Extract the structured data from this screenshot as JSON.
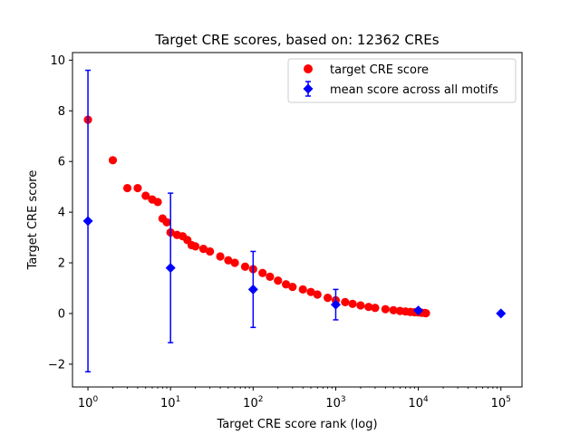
{
  "chart_data": {
    "type": "scatter",
    "title": "Target CRE scores, based on: 12362 CREs",
    "xlabel": "Target CRE score rank (log)",
    "ylabel": "Target CRE score",
    "xscale": "log",
    "xlim": [
      0.65,
      180000
    ],
    "ylim": [
      -2.9,
      10.3
    ],
    "x_ticks": [
      1,
      10,
      100,
      1000,
      10000,
      100000
    ],
    "x_tick_labels": [
      {
        "base": "10",
        "exp": "0"
      },
      {
        "base": "10",
        "exp": "1"
      },
      {
        "base": "10",
        "exp": "2"
      },
      {
        "base": "10",
        "exp": "3"
      },
      {
        "base": "10",
        "exp": "4"
      },
      {
        "base": "10",
        "exp": "5"
      }
    ],
    "y_ticks": [
      -2,
      0,
      2,
      4,
      6,
      8,
      10
    ],
    "y_tick_labels": [
      "−2",
      "0",
      "2",
      "4",
      "6",
      "8",
      "10"
    ],
    "grid": false,
    "legend_position": "top-right",
    "series": [
      {
        "name": "target CRE score",
        "kind": "points",
        "color": "#ff0000",
        "marker": "circle",
        "x": [
          1,
          2,
          3,
          4,
          5,
          6,
          7,
          8,
          9,
          10,
          12,
          14,
          16,
          18,
          20,
          25,
          30,
          40,
          50,
          60,
          80,
          100,
          130,
          160,
          200,
          250,
          300,
          400,
          500,
          600,
          800,
          1000,
          1300,
          1600,
          2000,
          2500,
          3000,
          4000,
          5000,
          6000,
          7000,
          8000,
          9000,
          10000,
          11000,
          12000,
          12362
        ],
        "y": [
          7.65,
          6.05,
          4.95,
          4.95,
          4.65,
          4.5,
          4.4,
          3.75,
          3.6,
          3.2,
          3.1,
          3.05,
          2.9,
          2.7,
          2.65,
          2.55,
          2.45,
          2.25,
          2.1,
          2.0,
          1.85,
          1.75,
          1.6,
          1.45,
          1.3,
          1.15,
          1.05,
          0.95,
          0.85,
          0.75,
          0.62,
          0.52,
          0.45,
          0.38,
          0.32,
          0.26,
          0.22,
          0.17,
          0.13,
          0.1,
          0.08,
          0.06,
          0.05,
          0.04,
          0.03,
          0.02,
          0.01
        ]
      },
      {
        "name": "mean score across all motifs",
        "kind": "errorbar",
        "color": "#0000ff",
        "marker": "diamond",
        "x": [
          1,
          10,
          100,
          1000,
          10000,
          100000
        ],
        "y": [
          3.65,
          1.8,
          0.95,
          0.35,
          0.12,
          0.0
        ],
        "yerr": [
          5.95,
          2.95,
          1.5,
          0.6,
          0.05,
          0.0
        ]
      }
    ]
  }
}
